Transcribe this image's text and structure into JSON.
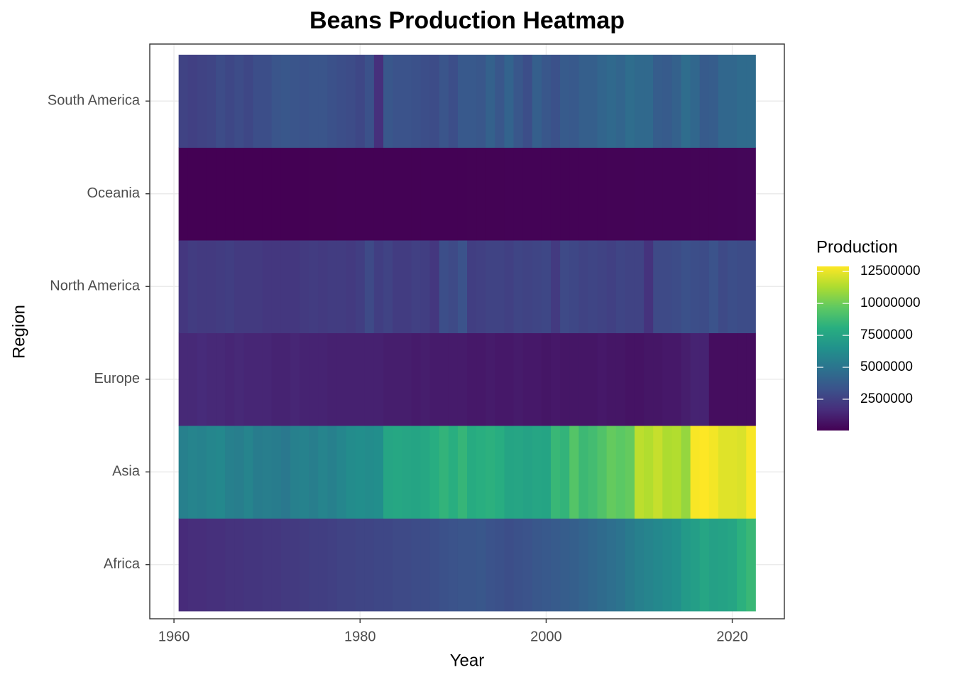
{
  "chart_data": {
    "type": "heatmap",
    "title": "Beans Production Heatmap",
    "x_label": "Year",
    "y_label": "Region",
    "legend_title": "Production",
    "colormap": "viridis",
    "x": [
      1961,
      1962,
      1963,
      1964,
      1965,
      1966,
      1967,
      1968,
      1969,
      1970,
      1971,
      1972,
      1973,
      1974,
      1975,
      1976,
      1977,
      1978,
      1979,
      1980,
      1981,
      1982,
      1983,
      1984,
      1985,
      1986,
      1987,
      1988,
      1989,
      1990,
      1991,
      1992,
      1993,
      1994,
      1995,
      1996,
      1997,
      1998,
      1999,
      2000,
      2001,
      2002,
      2003,
      2004,
      2005,
      2006,
      2007,
      2008,
      2009,
      2010,
      2011,
      2012,
      2013,
      2014,
      2015,
      2016,
      2017,
      2018,
      2019,
      2020,
      2021,
      2022
    ],
    "categories": [
      "Africa",
      "Asia",
      "Europe",
      "North America",
      "Oceania",
      "South America"
    ],
    "series": [
      {
        "name": "Africa",
        "values": [
          1600000,
          1700000,
          1700000,
          1800000,
          1800000,
          1900000,
          1900000,
          2000000,
          2000000,
          2100000,
          2100000,
          2200000,
          2200000,
          2300000,
          2400000,
          2400000,
          2500000,
          2600000,
          2600000,
          2700000,
          2700000,
          2800000,
          2800000,
          2900000,
          2900000,
          3000000,
          3000000,
          3100000,
          3200000,
          3300000,
          3400000,
          3400000,
          3500000,
          3300000,
          3200000,
          3100000,
          3200000,
          3300000,
          3500000,
          3600000,
          3700000,
          3800000,
          3900000,
          4100000,
          4300000,
          4500000,
          4700000,
          4900000,
          5300000,
          5600000,
          5800000,
          6000000,
          6200000,
          6400000,
          7000000,
          7200000,
          7600000,
          7300000,
          7400000,
          7600000,
          8200000,
          8600000
        ]
      },
      {
        "name": "Asia",
        "values": [
          5600000,
          5800000,
          5700000,
          5900000,
          6000000,
          5600000,
          5500000,
          5800000,
          5400000,
          5500000,
          5400000,
          5200000,
          5600000,
          5700000,
          5500000,
          5800000,
          5600000,
          5900000,
          6200000,
          6300000,
          6200000,
          6300000,
          7600000,
          7700000,
          7600000,
          7500000,
          7700000,
          8000000,
          8400000,
          8100000,
          8500000,
          7900000,
          8100000,
          8200000,
          8000000,
          7500000,
          7600000,
          7400000,
          7600000,
          7500000,
          8600000,
          8400000,
          9400000,
          8700000,
          8900000,
          9300000,
          9800000,
          9600000,
          9800000,
          11600000,
          11400000,
          11800000,
          11300000,
          11400000,
          10800000,
          12800000,
          12900000,
          12700000,
          12300000,
          12300000,
          12200000,
          12800000
        ]
      },
      {
        "name": "Europe",
        "values": [
          1500000,
          1500000,
          1600000,
          1500000,
          1500000,
          1400000,
          1500000,
          1400000,
          1400000,
          1400000,
          1300000,
          1300000,
          1400000,
          1300000,
          1300000,
          1300000,
          1200000,
          1200000,
          1200000,
          1200000,
          1200000,
          1200000,
          1100000,
          1100000,
          1100000,
          1000000,
          1100000,
          1000000,
          1000000,
          1000000,
          1000000,
          900000,
          900000,
          1000000,
          900000,
          900000,
          1000000,
          900000,
          900000,
          800000,
          900000,
          800000,
          800000,
          800000,
          800000,
          900000,
          800000,
          800000,
          700000,
          700000,
          800000,
          800000,
          900000,
          900000,
          1100000,
          1300000,
          1300000,
          500000,
          500000,
          500000,
          500000,
          500000
        ]
      },
      {
        "name": "North America",
        "values": [
          2100000,
          2300000,
          2200000,
          2200000,
          2300000,
          2400000,
          2200000,
          2200000,
          2200000,
          2100000,
          2100000,
          2100000,
          2100000,
          2200000,
          2300000,
          2200000,
          2300000,
          2300000,
          2200000,
          2400000,
          2900000,
          2400000,
          2600000,
          2300000,
          2300000,
          2500000,
          2400000,
          2100000,
          3100000,
          2900000,
          3300000,
          2400000,
          2500000,
          2600000,
          2600000,
          2500000,
          2700000,
          2600000,
          2700000,
          2800000,
          2200000,
          2900000,
          2800000,
          2600000,
          2700000,
          2600000,
          2500000,
          2700000,
          2600000,
          2600000,
          1900000,
          2900000,
          2900000,
          3000000,
          3200000,
          3100000,
          3000000,
          3300000,
          2900000,
          3100000,
          3000000,
          3000000
        ]
      },
      {
        "name": "Oceania",
        "values": [
          40000,
          40000,
          45000,
          45000,
          50000,
          50000,
          50000,
          55000,
          55000,
          60000,
          60000,
          60000,
          65000,
          65000,
          70000,
          70000,
          70000,
          75000,
          75000,
          80000,
          80000,
          80000,
          85000,
          85000,
          90000,
          90000,
          90000,
          95000,
          95000,
          100000,
          100000,
          105000,
          105000,
          110000,
          110000,
          115000,
          115000,
          120000,
          120000,
          125000,
          125000,
          130000,
          130000,
          135000,
          140000,
          140000,
          145000,
          150000,
          150000,
          155000,
          160000,
          160000,
          165000,
          170000,
          175000,
          180000,
          185000,
          190000,
          195000,
          200000,
          250000,
          250000
        ]
      },
      {
        "name": "South America",
        "values": [
          2600000,
          2500000,
          2600000,
          2700000,
          3000000,
          2800000,
          3000000,
          2800000,
          3100000,
          3100000,
          3400000,
          3500000,
          3400000,
          3300000,
          3400000,
          3400000,
          3200000,
          3100000,
          3000000,
          2800000,
          3200000,
          1800000,
          3500000,
          3300000,
          3300000,
          3200000,
          3100000,
          3000000,
          3400000,
          3100000,
          3600000,
          3600000,
          3500000,
          4000000,
          3500000,
          4100000,
          3500000,
          3100000,
          3900000,
          3500000,
          3200000,
          3700000,
          3600000,
          3900000,
          3900000,
          4200000,
          4400000,
          4200000,
          4600000,
          4400000,
          4400000,
          3800000,
          3700000,
          4000000,
          4600000,
          4300000,
          3700000,
          3800000,
          4300000,
          4300000,
          4500000,
          4500000
        ]
      }
    ],
    "xlim": [
      1957.4,
      2025.6
    ],
    "xticks": [
      1960,
      1980,
      2000,
      2020
    ],
    "zlim": [
      50000,
      12900000
    ],
    "zticks": [
      2500000,
      5000000,
      7500000,
      10000000,
      12500000
    ],
    "grid": true
  }
}
